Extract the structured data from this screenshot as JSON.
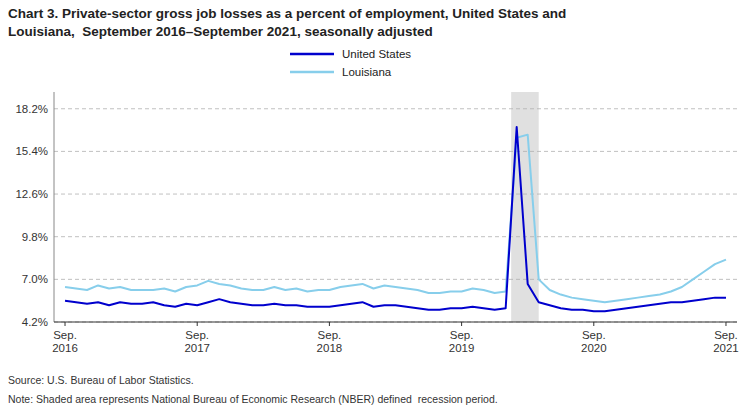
{
  "chart_data": {
    "type": "line",
    "title": "Chart 3. Private-sector gross job losses as a percent of employment, United States and",
    "subtitle": "Louisiana,  September 2016–September 2021, seasonally adjusted",
    "annotations": [
      "Source: U.S. Bureau of Labor Statistics.",
      "Note: Shaded area represents National Bureau of Economic Research (NBER) defined  recession period."
    ],
    "categories": [
      "Sep.\n2016",
      null,
      null,
      null,
      null,
      null,
      null,
      null,
      null,
      null,
      null,
      null,
      "Sep.\n2017",
      null,
      null,
      null,
      null,
      null,
      null,
      null,
      null,
      null,
      null,
      null,
      "Sep.\n2018",
      null,
      null,
      null,
      null,
      null,
      null,
      null,
      null,
      null,
      null,
      null,
      "Sep.\n2019",
      null,
      null,
      null,
      null,
      null,
      null,
      null,
      null,
      null,
      null,
      null,
      "Sep.\n2020",
      null,
      null,
      null,
      null,
      null,
      null,
      null,
      null,
      null,
      null,
      null,
      "Sep.\n2021"
    ],
    "series": [
      {
        "name": "United States",
        "color": "#0000CD",
        "values": [
          5.6,
          5.5,
          5.4,
          5.5,
          5.3,
          5.5,
          5.4,
          5.4,
          5.5,
          5.3,
          5.2,
          5.4,
          5.3,
          5.5,
          5.7,
          5.5,
          5.4,
          5.3,
          5.3,
          5.4,
          5.3,
          5.3,
          5.2,
          5.2,
          5.2,
          5.3,
          5.4,
          5.5,
          5.2,
          5.3,
          5.3,
          5.2,
          5.1,
          5.0,
          5.0,
          5.1,
          5.1,
          5.2,
          5.1,
          5.0,
          5.1,
          17.0,
          6.7,
          5.5,
          5.3,
          5.1,
          5.0,
          5.0,
          4.9,
          4.9,
          5.0,
          5.1,
          5.2,
          5.3,
          5.4,
          5.5,
          5.5,
          5.6,
          5.7,
          5.8,
          5.8
        ]
      },
      {
        "name": "Louisiana",
        "color": "#87CEEB",
        "values": [
          6.5,
          6.4,
          6.3,
          6.6,
          6.4,
          6.5,
          6.3,
          6.3,
          6.3,
          6.4,
          6.2,
          6.5,
          6.6,
          6.9,
          6.7,
          6.6,
          6.4,
          6.3,
          6.3,
          6.5,
          6.3,
          6.4,
          6.2,
          6.3,
          6.3,
          6.5,
          6.6,
          6.7,
          6.4,
          6.6,
          6.5,
          6.4,
          6.3,
          6.1,
          6.1,
          6.2,
          6.2,
          6.4,
          6.3,
          6.1,
          6.2,
          16.3,
          16.5,
          7.0,
          6.3,
          6.0,
          5.8,
          5.7,
          5.6,
          5.5,
          5.6,
          5.7,
          5.8,
          5.9,
          6.0,
          6.2,
          6.5,
          7.0,
          7.5,
          8.0,
          8.3
        ]
      }
    ],
    "shaded": {
      "from": 40.5,
      "to": 43.0,
      "color": "#D3D3D3"
    },
    "ylim": [
      4.2,
      19.3
    ],
    "yticks": [
      {
        "value": 4.2,
        "label": "4.2%"
      },
      {
        "value": 7.0,
        "label": "7.0%"
      },
      {
        "value": 9.8,
        "label": "9.8%"
      },
      {
        "value": 12.6,
        "label": "12.6%"
      },
      {
        "value": 15.4,
        "label": "15.4%"
      },
      {
        "value": 18.2,
        "label": "18.2%"
      }
    ],
    "grid": true,
    "legend": "top"
  }
}
